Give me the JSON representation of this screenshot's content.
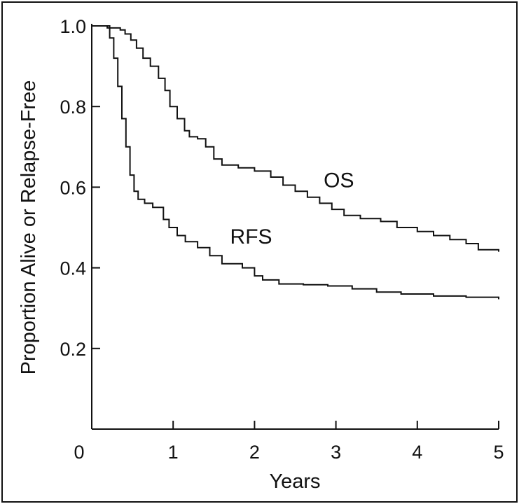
{
  "chart_data": {
    "type": "line",
    "step": true,
    "title": "",
    "xlabel": "Years",
    "ylabel": "Proportion Alive or Relapse-Free",
    "xlim": [
      0,
      5
    ],
    "ylim": [
      0,
      1.0
    ],
    "x_ticks": [
      0,
      1,
      2,
      3,
      4,
      5
    ],
    "x_tick_labels": [
      "0",
      "1",
      "2",
      "3",
      "4",
      "5"
    ],
    "y_ticks": [
      0.2,
      0.4,
      0.6,
      0.8,
      1.0
    ],
    "y_tick_labels": [
      "0.2",
      "0.4",
      "0.6",
      "0.8",
      "1.0"
    ],
    "grid": false,
    "line_color": "#111111",
    "series": [
      {
        "name": "OS",
        "label_anchor": [
          2.85,
          0.6
        ],
        "points": [
          [
            0,
            1.0
          ],
          [
            0.17,
            1.0
          ],
          [
            0.19,
            0.995
          ],
          [
            0.35,
            0.99
          ],
          [
            0.41,
            0.98
          ],
          [
            0.48,
            0.965
          ],
          [
            0.55,
            0.945
          ],
          [
            0.63,
            0.92
          ],
          [
            0.72,
            0.9
          ],
          [
            0.82,
            0.87
          ],
          [
            0.9,
            0.84
          ],
          [
            0.96,
            0.8
          ],
          [
            1.05,
            0.77
          ],
          [
            1.14,
            0.74
          ],
          [
            1.2,
            0.725
          ],
          [
            1.3,
            0.72
          ],
          [
            1.4,
            0.7
          ],
          [
            1.5,
            0.67
          ],
          [
            1.6,
            0.655
          ],
          [
            1.8,
            0.648
          ],
          [
            2.0,
            0.64
          ],
          [
            2.2,
            0.625
          ],
          [
            2.35,
            0.605
          ],
          [
            2.5,
            0.59
          ],
          [
            2.65,
            0.575
          ],
          [
            2.8,
            0.56
          ],
          [
            2.95,
            0.545
          ],
          [
            3.1,
            0.53
          ],
          [
            3.3,
            0.522
          ],
          [
            3.55,
            0.515
          ],
          [
            3.75,
            0.5
          ],
          [
            4.0,
            0.49
          ],
          [
            4.2,
            0.48
          ],
          [
            4.4,
            0.47
          ],
          [
            4.6,
            0.46
          ],
          [
            4.75,
            0.445
          ],
          [
            5.0,
            0.44
          ]
        ]
      },
      {
        "name": "RFS",
        "label_anchor": [
          1.7,
          0.46
        ],
        "points": [
          [
            0,
            1.0
          ],
          [
            0.17,
            1.0
          ],
          [
            0.22,
            0.97
          ],
          [
            0.27,
            0.92
          ],
          [
            0.32,
            0.85
          ],
          [
            0.37,
            0.77
          ],
          [
            0.42,
            0.7
          ],
          [
            0.47,
            0.63
          ],
          [
            0.52,
            0.59
          ],
          [
            0.57,
            0.57
          ],
          [
            0.65,
            0.56
          ],
          [
            0.75,
            0.55
          ],
          [
            0.88,
            0.52
          ],
          [
            0.95,
            0.5
          ],
          [
            1.05,
            0.48
          ],
          [
            1.15,
            0.465
          ],
          [
            1.3,
            0.45
          ],
          [
            1.45,
            0.43
          ],
          [
            1.6,
            0.41
          ],
          [
            1.85,
            0.4
          ],
          [
            2.0,
            0.38
          ],
          [
            2.1,
            0.37
          ],
          [
            2.3,
            0.36
          ],
          [
            2.6,
            0.358
          ],
          [
            2.9,
            0.355
          ],
          [
            3.2,
            0.348
          ],
          [
            3.5,
            0.34
          ],
          [
            3.8,
            0.335
          ],
          [
            4.2,
            0.33
          ],
          [
            4.6,
            0.327
          ],
          [
            5.0,
            0.322
          ]
        ]
      }
    ]
  }
}
